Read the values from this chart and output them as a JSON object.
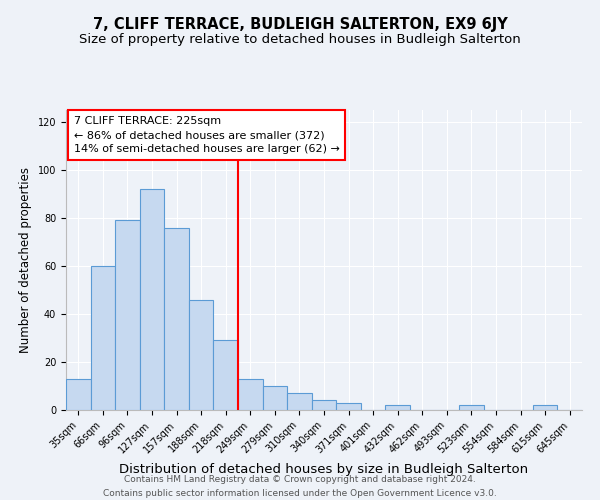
{
  "title": "7, CLIFF TERRACE, BUDLEIGH SALTERTON, EX9 6JY",
  "subtitle": "Size of property relative to detached houses in Budleigh Salterton",
  "xlabel": "Distribution of detached houses by size in Budleigh Salterton",
  "ylabel": "Number of detached properties",
  "footer_line1": "Contains HM Land Registry data © Crown copyright and database right 2024.",
  "footer_line2": "Contains public sector information licensed under the Open Government Licence v3.0.",
  "bin_labels": [
    "35sqm",
    "66sqm",
    "96sqm",
    "127sqm",
    "157sqm",
    "188sqm",
    "218sqm",
    "249sqm",
    "279sqm",
    "310sqm",
    "340sqm",
    "371sqm",
    "401sqm",
    "432sqm",
    "462sqm",
    "493sqm",
    "523sqm",
    "554sqm",
    "584sqm",
    "615sqm",
    "645sqm"
  ],
  "bar_heights": [
    13,
    60,
    79,
    92,
    76,
    46,
    29,
    13,
    10,
    7,
    4,
    3,
    0,
    2,
    0,
    0,
    2,
    0,
    0,
    2,
    0
  ],
  "bar_color": "#c6d9f0",
  "bar_edge_color": "#5b9bd5",
  "vline_x": 6.5,
  "vline_color": "red",
  "annotation_line1": "7 CLIFF TERRACE: 225sqm",
  "annotation_line2": "← 86% of detached houses are smaller (372)",
  "annotation_line3": "14% of semi-detached houses are larger (62) →",
  "ylim": [
    0,
    125
  ],
  "yticks": [
    0,
    20,
    40,
    60,
    80,
    100,
    120
  ],
  "background_color": "#eef2f8",
  "plot_bg_color": "#eef2f8",
  "title_fontsize": 10.5,
  "subtitle_fontsize": 9.5,
  "xlabel_fontsize": 9.5,
  "ylabel_fontsize": 8.5,
  "tick_fontsize": 7,
  "annotation_fontsize": 8,
  "footer_fontsize": 6.5
}
